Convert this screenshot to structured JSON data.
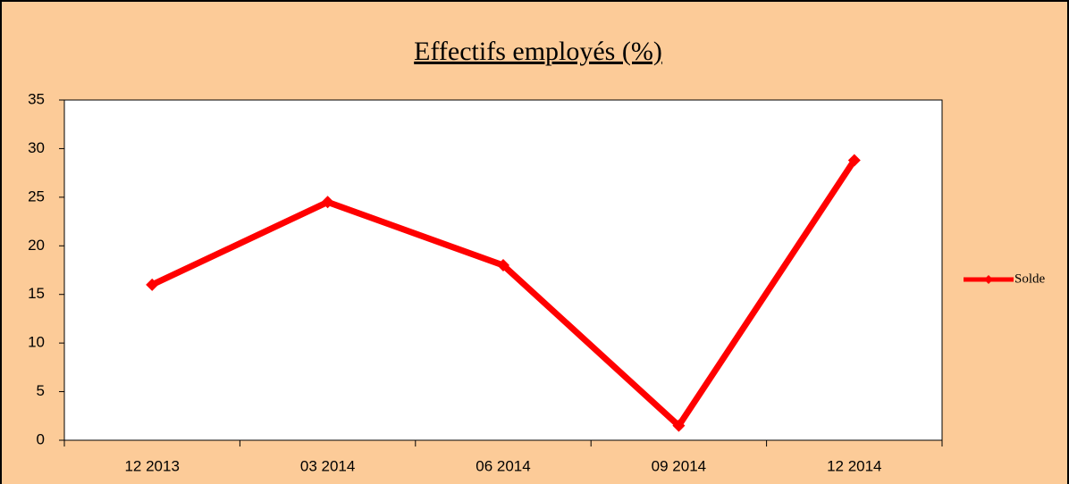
{
  "chart_data": {
    "type": "line",
    "title": "Effectifs employés (%)",
    "categories": [
      "12 2013",
      "03 2014",
      "06 2014",
      "09 2014",
      "12 2014"
    ],
    "series": [
      {
        "name": "Solde",
        "color": "#ff0000",
        "values": [
          16,
          24.5,
          18,
          1.5,
          28.8
        ]
      }
    ],
    "ylim": [
      0,
      35
    ],
    "yticks": [
      0,
      5,
      10,
      15,
      20,
      25,
      30,
      35
    ],
    "grid": false,
    "legend": "right"
  }
}
